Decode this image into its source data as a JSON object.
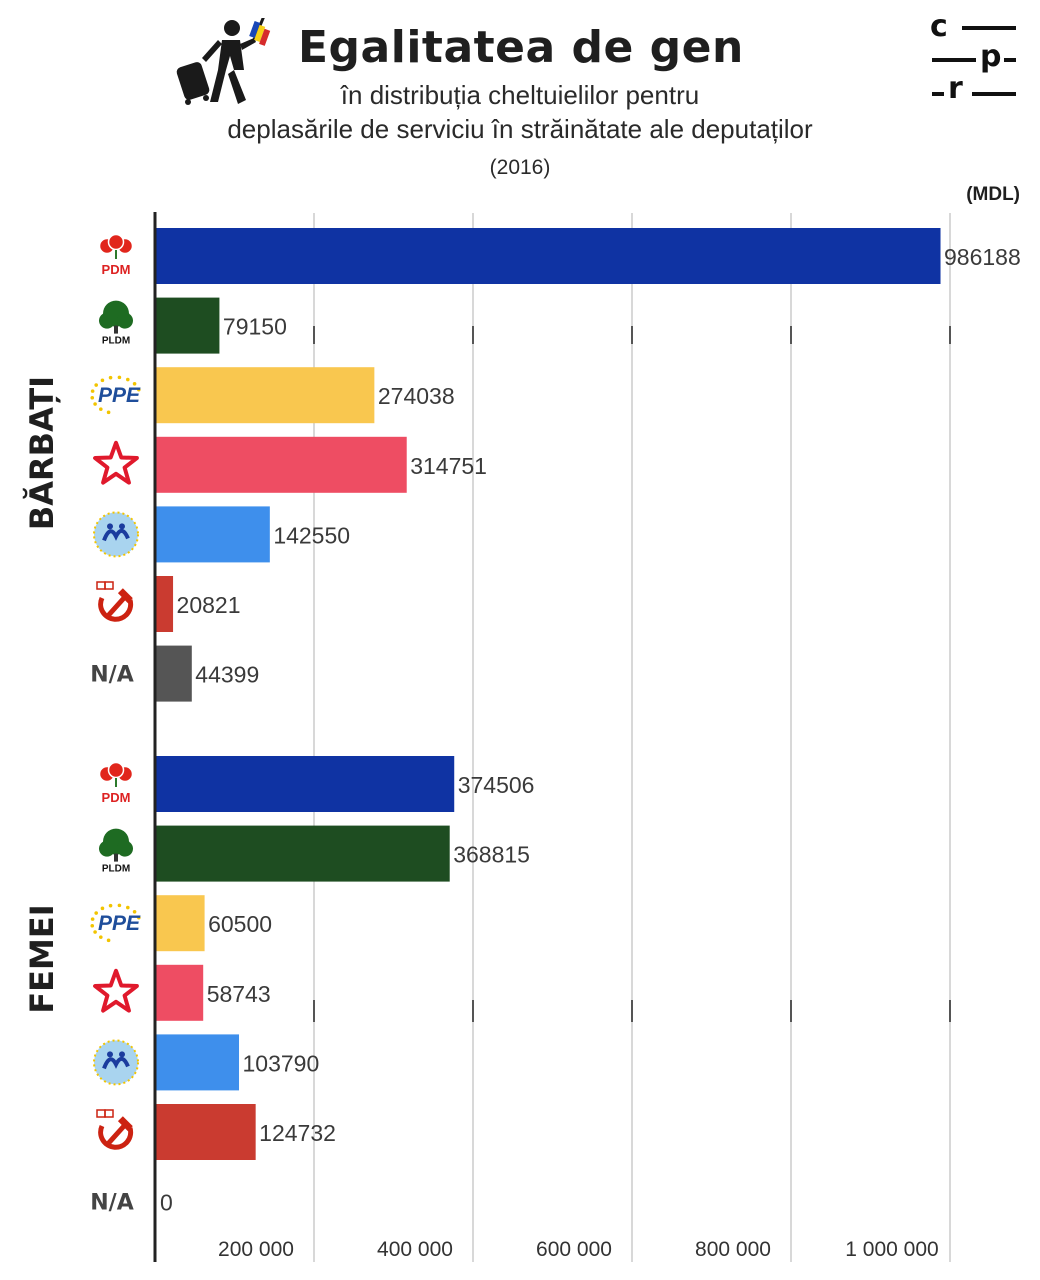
{
  "header": {
    "title": "Egalitatea de gen",
    "subtitle_line1": "în distribuția cheltuielilor pentru",
    "subtitle_line2": "deplasările de serviciu în străinătate ale deputaților",
    "year": "(2016)",
    "unit": "(MDL)"
  },
  "logo": {
    "c": "c",
    "p": "p",
    "r": "r",
    "dash": "-"
  },
  "colors": {
    "PDM": "#0f33a3",
    "PLDM": "#1e4d21",
    "PPE": "#f9c74f",
    "PSRM": "#ee4d63",
    "PL": "#3e8fec",
    "PCRM": "#ca3b30",
    "NA": "#555555",
    "axis": "#222222",
    "grid": "#bdbdbd"
  },
  "chart_data": {
    "type": "bar",
    "orientation": "horizontal",
    "xlim": [
      0,
      1000000
    ],
    "x_ticks": [
      "200 000",
      "400 000",
      "600 000",
      "800 000",
      "1 000 000"
    ],
    "x_tick_values": [
      200000,
      400000,
      600000,
      800000,
      1000000
    ],
    "grid": true,
    "groups": [
      {
        "name": "BĂRBAȚI",
        "bars": [
          {
            "party": "PDM",
            "icon": "pdm-rose-logo-icon",
            "value": 986188
          },
          {
            "party": "PLDM",
            "icon": "pldm-tree-logo-icon",
            "value": 79150
          },
          {
            "party": "PPE",
            "icon": "ppe-logo-icon",
            "value": 274038
          },
          {
            "party": "PSRM",
            "icon": "red-star-logo-icon",
            "value": 314751
          },
          {
            "party": "PL",
            "icon": "pl-logo-icon",
            "value": 142550
          },
          {
            "party": "PCRM",
            "icon": "hammer-sickle-logo-icon",
            "value": 20821
          },
          {
            "party": "N/A",
            "icon": "",
            "value": 44399
          }
        ]
      },
      {
        "name": "FEMEI",
        "bars": [
          {
            "party": "PDM",
            "icon": "pdm-rose-logo-icon",
            "value": 374506
          },
          {
            "party": "PLDM",
            "icon": "pldm-tree-logo-icon",
            "value": 368815
          },
          {
            "party": "PPE",
            "icon": "ppe-logo-icon",
            "value": 60500
          },
          {
            "party": "PSRM",
            "icon": "red-star-logo-icon",
            "value": 58743
          },
          {
            "party": "PL",
            "icon": "pl-logo-icon",
            "value": 103790
          },
          {
            "party": "PCRM",
            "icon": "hammer-sickle-logo-icon",
            "value": 124732
          },
          {
            "party": "N/A",
            "icon": "",
            "value": 0
          }
        ]
      }
    ]
  }
}
